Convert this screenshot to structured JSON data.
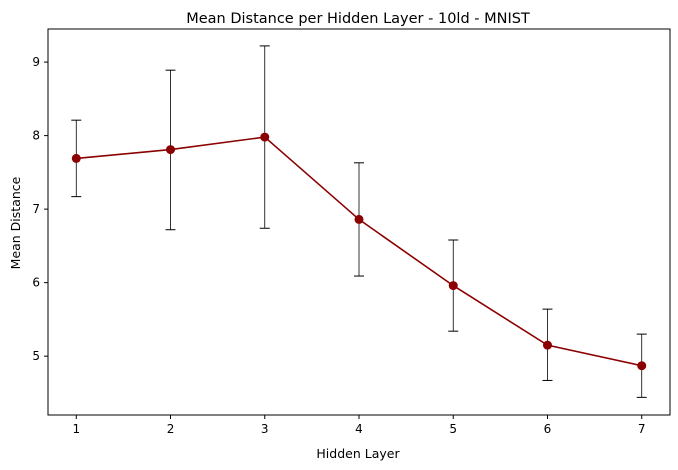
{
  "chart_data": {
    "type": "line",
    "title": "Mean Distance per Hidden Layer - 10ld - MNIST",
    "xlabel": "Hidden Layer",
    "ylabel": "Mean Distance",
    "x": [
      1,
      2,
      3,
      4,
      5,
      6,
      7
    ],
    "xticks": [
      "1",
      "2",
      "3",
      "4",
      "5",
      "6",
      "7"
    ],
    "yticks": [
      "5",
      "6",
      "7",
      "8",
      "9"
    ],
    "xlim": [
      0.7,
      7.3
    ],
    "ylim": [
      4.2,
      9.45
    ],
    "grid": false,
    "series": [
      {
        "values": [
          7.69,
          7.81,
          7.98,
          6.86,
          5.96,
          5.15,
          4.87
        ],
        "error_low": [
          7.17,
          6.72,
          6.74,
          6.09,
          5.34,
          4.67,
          4.44
        ],
        "error_high": [
          8.21,
          8.89,
          9.22,
          7.63,
          6.58,
          5.64,
          5.3
        ],
        "color": "#8b0000"
      }
    ],
    "errorbar_color": "#000000"
  }
}
